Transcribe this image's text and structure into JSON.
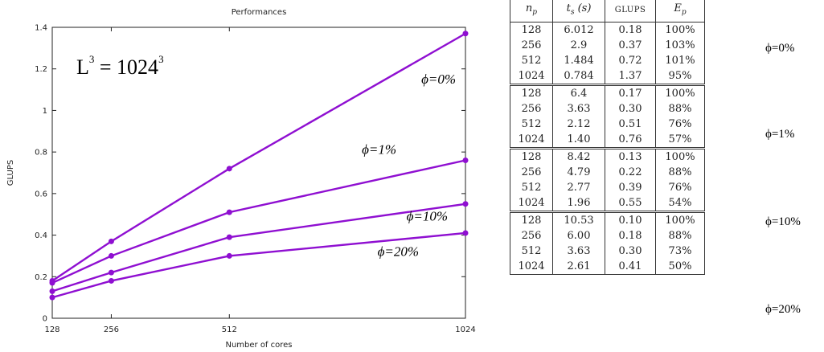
{
  "chart_data": {
    "type": "line",
    "title": "Performances",
    "xlabel": "Number of cores",
    "ylabel": "GLUPS",
    "x": [
      128,
      256,
      512,
      1024
    ],
    "xticks": [
      "128",
      "256",
      "512",
      "1024"
    ],
    "ylim": [
      0,
      1.4
    ],
    "yticks": [
      "0",
      "0.2",
      "0.4",
      "0.6",
      "0.8",
      "1",
      "1.2",
      "1.4"
    ],
    "color": "#8f0fd1",
    "series": [
      {
        "name": "ϕ=0%",
        "values": [
          0.18,
          0.37,
          0.72,
          1.37
        ]
      },
      {
        "name": "ϕ=1%",
        "values": [
          0.17,
          0.3,
          0.51,
          0.76
        ]
      },
      {
        "name": "ϕ=10%",
        "values": [
          0.13,
          0.22,
          0.39,
          0.55
        ]
      },
      {
        "name": "ϕ=20%",
        "values": [
          0.1,
          0.18,
          0.3,
          0.41
        ]
      }
    ],
    "annotation": {
      "base": "L",
      "exp": "3",
      "eq": " = 1024",
      "exp2": "3"
    }
  },
  "table": {
    "headers": {
      "np": "n_p",
      "ts": "t_s (s)",
      "glups": "GLUPS",
      "ep": "E_p"
    },
    "groups": [
      {
        "label": "ϕ=0%",
        "rows": [
          [
            "128",
            "6.012",
            "0.18",
            "100%"
          ],
          [
            "256",
            "2.9",
            "0.37",
            "103%"
          ],
          [
            "512",
            "1.484",
            "0.72",
            "101%"
          ],
          [
            "1024",
            "0.784",
            "1.37",
            "95%"
          ]
        ]
      },
      {
        "label": "ϕ=1%",
        "rows": [
          [
            "128",
            "6.4",
            "0.17",
            "100%"
          ],
          [
            "256",
            "3.63",
            "0.30",
            "88%"
          ],
          [
            "512",
            "2.12",
            "0.51",
            "76%"
          ],
          [
            "1024",
            "1.40",
            "0.76",
            "57%"
          ]
        ]
      },
      {
        "label": "ϕ=10%",
        "rows": [
          [
            "128",
            "8.42",
            "0.13",
            "100%"
          ],
          [
            "256",
            "4.79",
            "0.22",
            "88%"
          ],
          [
            "512",
            "2.77",
            "0.39",
            "76%"
          ],
          [
            "1024",
            "1.96",
            "0.55",
            "54%"
          ]
        ]
      },
      {
        "label": "ϕ=20%",
        "rows": [
          [
            "128",
            "10.53",
            "0.10",
            "100%"
          ],
          [
            "256",
            "6.00",
            "0.18",
            "88%"
          ],
          [
            "512",
            "3.63",
            "0.30",
            "73%"
          ],
          [
            "1024",
            "2.61",
            "0.41",
            "50%"
          ]
        ]
      }
    ]
  }
}
